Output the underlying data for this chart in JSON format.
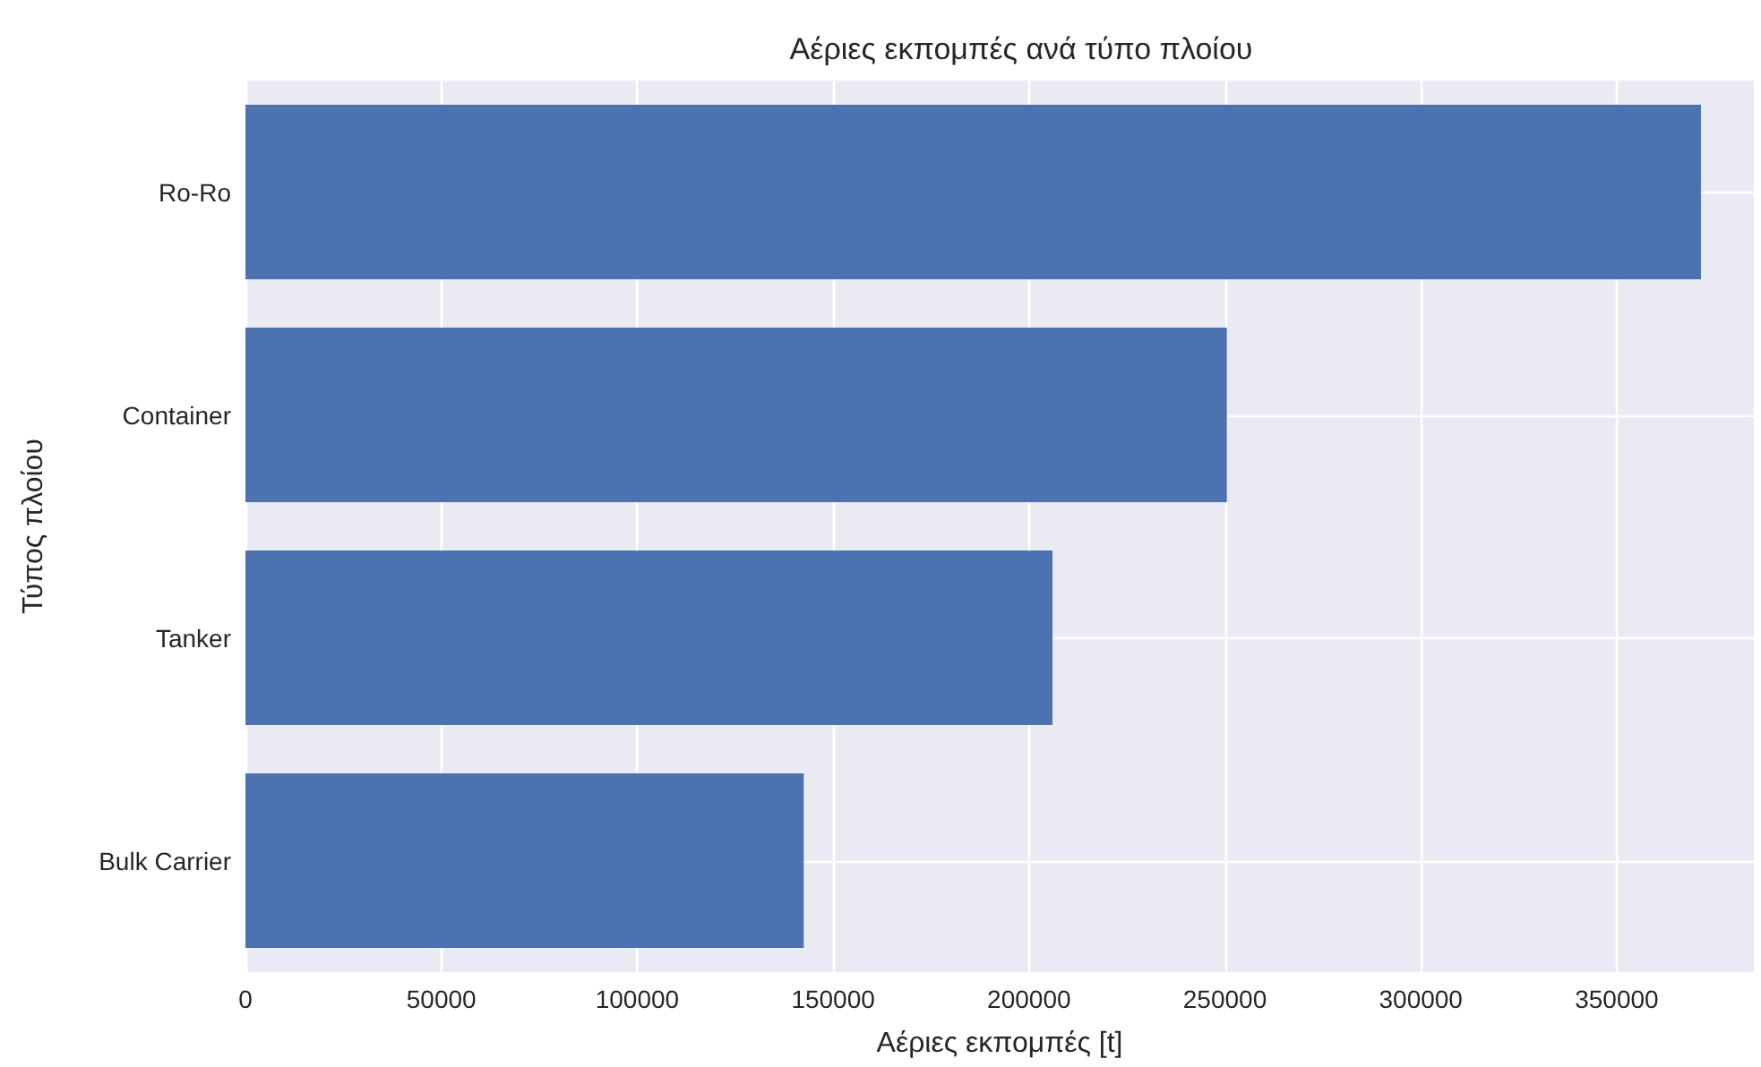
{
  "chart_data": {
    "type": "bar",
    "orientation": "horizontal",
    "title": "Αέριες εκπομπές ανά τύπο πλοίου",
    "xlabel": "Αέριες εκπομπές [t]",
    "ylabel": "Τύπος πλοίου",
    "categories": [
      "Ro-Ro",
      "Container",
      "Tanker",
      "Bulk Carrier"
    ],
    "values": [
      371500,
      250500,
      206000,
      142500
    ],
    "color": "#4c72b0",
    "xlim": [
      0,
      385000
    ],
    "xticks": [
      0,
      50000,
      100000,
      150000,
      200000,
      250000,
      300000,
      350000
    ],
    "grid": true
  }
}
